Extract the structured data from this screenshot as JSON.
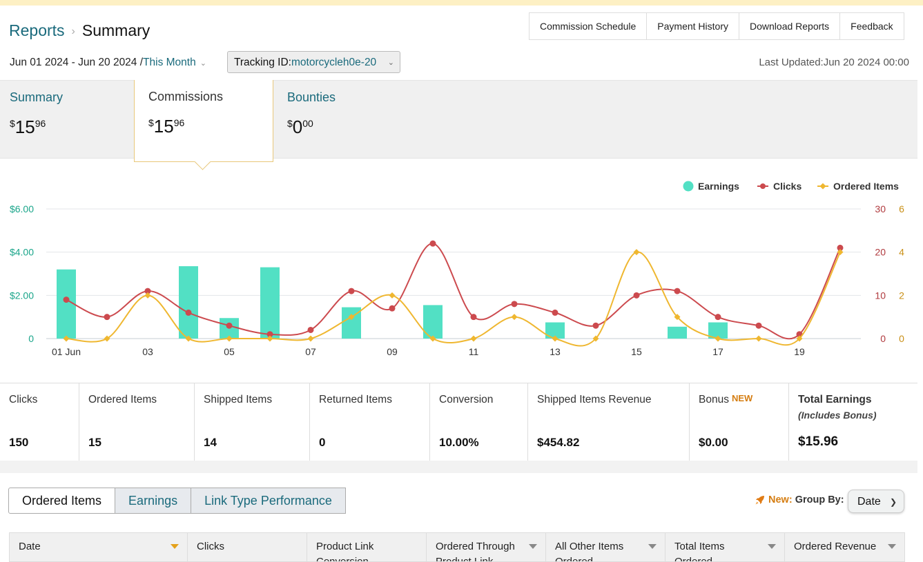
{
  "breadcrumb": {
    "parent": "Reports",
    "separator": "›",
    "current": "Summary"
  },
  "header_buttons": [
    "Commission Schedule",
    "Payment History",
    "Download Reports",
    "Feedback"
  ],
  "date_range": {
    "text": "Jun 01 2024 - Jun 20 2024 /",
    "period": "This Month"
  },
  "tracking": {
    "label": "Tracking ID:",
    "value": "motorcycleh0e-20"
  },
  "last_updated": "Last Updated:Jun 20 2024 00:00",
  "summary_tabs": [
    {
      "label": "Summary",
      "currency": "$",
      "whole": "15",
      "cents": "96"
    },
    {
      "label": "Commissions",
      "currency": "$",
      "whole": "15",
      "cents": "96"
    },
    {
      "label": "Bounties",
      "currency": "$",
      "whole": "0",
      "cents": "00"
    }
  ],
  "colors": {
    "earnings": "#52e0c4",
    "clicks": "#cc4a4e",
    "ordered": "#efb730",
    "link": "#1a6a7c",
    "accent": "#d57d11"
  },
  "chart_data": {
    "type": "bar+line",
    "x": [
      "01 Jun",
      "02",
      "03",
      "04",
      "05",
      "06",
      "07",
      "08",
      "09",
      "10",
      "11",
      "12",
      "13",
      "14",
      "15",
      "16",
      "17",
      "18",
      "19",
      "20"
    ],
    "x_tick_labels": [
      "01 Jun",
      "03",
      "05",
      "07",
      "09",
      "11",
      "13",
      "15",
      "17",
      "19"
    ],
    "legend": [
      "Earnings",
      "Clicks",
      "Ordered Items"
    ],
    "legend_position": "top-right",
    "series": [
      {
        "name": "Earnings",
        "type": "bar",
        "axis": "left",
        "values": [
          3.2,
          0,
          0,
          3.35,
          0.95,
          3.3,
          0,
          1.45,
          0,
          1.55,
          0,
          0,
          0.75,
          0,
          0,
          0.55,
          0.75,
          0,
          0,
          0
        ]
      },
      {
        "name": "Clicks",
        "type": "line",
        "axis": "right1",
        "values": [
          9,
          5,
          11,
          6,
          3,
          1,
          2,
          11,
          7,
          22,
          5,
          8,
          6,
          3,
          10,
          11,
          5,
          3,
          1,
          21
        ]
      },
      {
        "name": "Ordered Items",
        "type": "line",
        "axis": "right2",
        "values": [
          0,
          0,
          2,
          0,
          0,
          0,
          0,
          1,
          2,
          0,
          0,
          1,
          0,
          0,
          4,
          1,
          0,
          0,
          0,
          4
        ]
      }
    ],
    "y_left": {
      "ticks": [
        "0",
        "$2.00",
        "$4.00",
        "$6.00"
      ],
      "range": [
        0,
        6
      ]
    },
    "y_right1": {
      "ticks": [
        "0",
        "10",
        "20",
        "30"
      ],
      "range": [
        0,
        30
      ]
    },
    "y_right2": {
      "ticks": [
        "0",
        "2",
        "4",
        "6"
      ],
      "range": [
        0,
        6
      ]
    },
    "grid": true
  },
  "metrics": [
    {
      "label": "Clicks",
      "value": "150"
    },
    {
      "label": "Ordered Items",
      "value": "15"
    },
    {
      "label": "Shipped Items",
      "value": "14"
    },
    {
      "label": "Returned Items",
      "value": "0"
    },
    {
      "label": "Conversion",
      "value": "10.00%"
    },
    {
      "label": "Shipped Items Revenue",
      "value": "$454.82"
    },
    {
      "label": "Bonus",
      "badge": "NEW",
      "value": "$0.00"
    },
    {
      "label": "Total Earnings",
      "sub": "(Includes Bonus)",
      "value": "$15.96"
    }
  ],
  "report_tabs": [
    "Ordered Items",
    "Earnings",
    "Link Type Performance"
  ],
  "group_by": {
    "new": "New:",
    "label": "Group By:",
    "selected": "Date"
  },
  "table_headers": [
    {
      "line1": "Date",
      "line2": ""
    },
    {
      "line1": "Clicks",
      "line2": ""
    },
    {
      "line1": "Product Link",
      "line2": "Conversion"
    },
    {
      "line1": "Ordered Through",
      "line2": "Product Link"
    },
    {
      "line1": "All Other Items",
      "line2": "Ordered"
    },
    {
      "line1": "Total Items",
      "line2": "Ordered"
    },
    {
      "line1": "Ordered Revenue",
      "line2": ""
    }
  ]
}
